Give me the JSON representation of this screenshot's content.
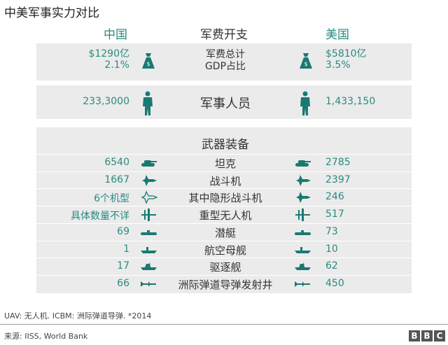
{
  "title": "中美军事实力对比",
  "headers": {
    "china": "中国",
    "category": "军费开支",
    "usa": "美国"
  },
  "colors": {
    "accent": "#2a8a82",
    "panel": "#ebebeb"
  },
  "spending": {
    "label_line1": "军费总计",
    "label_line2": "GDP占比",
    "china_total": "$1290亿",
    "china_gdp": "2.1%",
    "usa_total": "$5810亿",
    "usa_gdp": "3.5%",
    "icon": "money-bag-icon"
  },
  "personnel": {
    "label": "军事人员",
    "china": "233,3000",
    "usa": "1,433,150",
    "icon": "soldier-icon"
  },
  "equipment": {
    "heading": "武器装备",
    "rows": [
      {
        "label": "坦克",
        "china": "6540",
        "usa": "2785",
        "icon": "tank",
        "china_icon": "tank"
      },
      {
        "label": "战斗机",
        "china": "1667",
        "usa": "2397",
        "icon": "jet",
        "china_icon": "jet"
      },
      {
        "label": "其中隐形战斗机",
        "china": "6个机型",
        "usa": "246",
        "icon": "jet",
        "china_icon": "jet-outline"
      },
      {
        "label": "重型无人机",
        "china": "具体数量不详",
        "usa": "517",
        "icon": "drone",
        "china_icon": "drone"
      },
      {
        "label": "潜艇",
        "china": "69",
        "usa": "73",
        "icon": "submarine",
        "china_icon": "submarine"
      },
      {
        "label": "航空母舰",
        "china": "1",
        "usa": "10",
        "icon": "carrier",
        "china_icon": "carrier"
      },
      {
        "label": "驱逐舰",
        "china": "17",
        "usa": "62",
        "icon": "destroyer",
        "china_icon": "destroyer"
      },
      {
        "label": "洲际弹道导弹发射井",
        "china": "66",
        "usa": "450",
        "icon": "missile",
        "china_icon": "missile"
      }
    ]
  },
  "footnote": "UAV: 无人机. ICBM: 洲际弹道导弹. *2014",
  "source": "来源: IISS, World Bank",
  "logo": [
    "B",
    "B",
    "C"
  ]
}
